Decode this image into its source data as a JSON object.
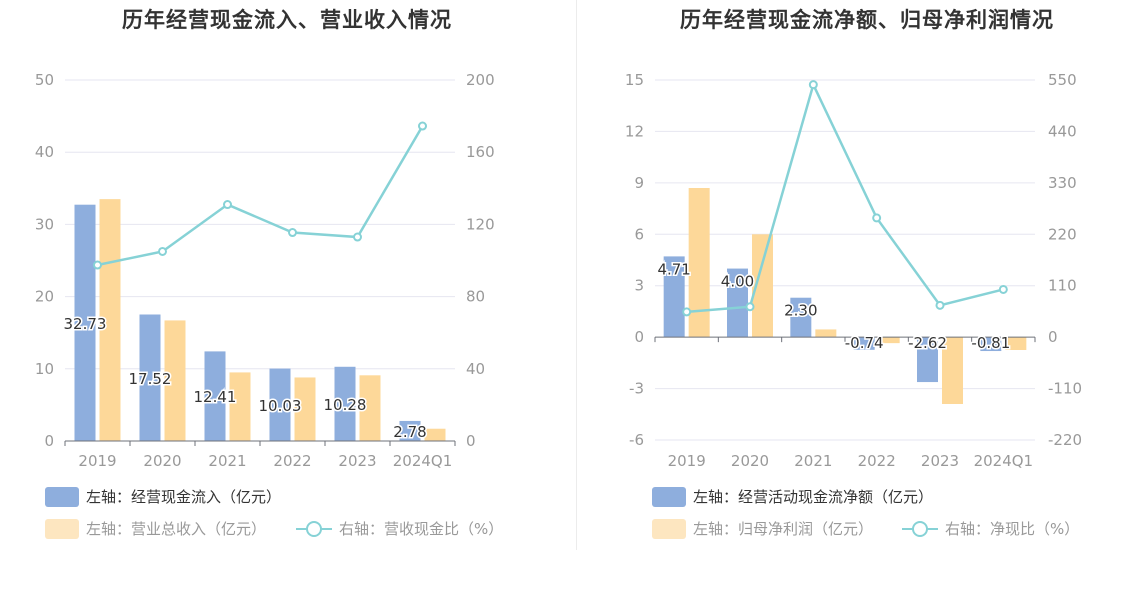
{
  "colors": {
    "blue": "#8eaedd",
    "orange": "#fdd899",
    "line": "#86d2d6",
    "grid": "#e6e6f0",
    "axis_text": "#999999"
  },
  "left_panel": {
    "title": "历年经营现金流入、营业收入情况",
    "legend": {
      "item1": "左轴：经营现金流入（亿元）",
      "item2": "左轴：营业总收入（亿元）",
      "item3": "右轴：营收现金比（%）"
    }
  },
  "right_panel": {
    "title": "历年经营现金流净额、归母净利润情况",
    "legend": {
      "item1": "左轴：经营活动现金流净额（亿元）",
      "item2": "左轴：归母净利润（亿元）",
      "item3": "右轴：净现比（%）"
    }
  },
  "chart_data": [
    {
      "type": "bar",
      "title": "历年经营现金流入、营业收入情况",
      "categories": [
        "2019",
        "2020",
        "2021",
        "2022",
        "2023",
        "2024Q1"
      ],
      "left_axis": {
        "ticks": [
          "0",
          "10",
          "20",
          "30",
          "40",
          "50"
        ],
        "ylim": [
          0,
          50
        ]
      },
      "right_axis": {
        "ticks": [
          "0",
          "40",
          "80",
          "120",
          "160",
          "200"
        ],
        "ylim": [
          0,
          200
        ]
      },
      "series": [
        {
          "name": "左轴：经营现金流入（亿元）",
          "type": "bar",
          "axis": "left",
          "values": [
            32.73,
            17.52,
            12.41,
            10.03,
            10.28,
            2.78
          ]
        },
        {
          "name": "左轴：营业总收入（亿元）",
          "type": "bar",
          "axis": "left",
          "values": [
            33.5,
            16.7,
            9.5,
            8.8,
            9.1,
            1.7
          ]
        },
        {
          "name": "右轴：营收现金比（%）",
          "type": "line",
          "axis": "right",
          "values": [
            97.5,
            105,
            131,
            115.5,
            113,
            174.5
          ]
        }
      ],
      "data_labels": [
        "32.73",
        "17.52",
        "12.41",
        "10.03",
        "10.28",
        "2.78"
      ],
      "grid": true,
      "legend_position": "bottom-left"
    },
    {
      "type": "bar",
      "title": "历年经营现金流净额、归母净利润情况",
      "categories": [
        "2019",
        "2020",
        "2021",
        "2022",
        "2023",
        "2024Q1"
      ],
      "left_axis": {
        "ticks": [
          "-6",
          "-3",
          "0",
          "3",
          "6",
          "9",
          "12",
          "15"
        ],
        "ylim": [
          -6,
          15
        ]
      },
      "right_axis": {
        "ticks": [
          "-220",
          "-110",
          "0",
          "110",
          "220",
          "330",
          "440",
          "550"
        ],
        "ylim": [
          -220,
          550
        ]
      },
      "series": [
        {
          "name": "左轴：经营活动现金流净额（亿元）",
          "type": "bar",
          "axis": "left",
          "values": [
            4.71,
            4.0,
            2.3,
            -0.74,
            -2.62,
            -0.81
          ]
        },
        {
          "name": "左轴：归母净利润（亿元）",
          "type": "bar",
          "axis": "left",
          "values": [
            8.7,
            6.0,
            0.45,
            -0.35,
            -3.9,
            -0.75
          ]
        },
        {
          "name": "右轴：净现比（%）",
          "type": "line",
          "axis": "right",
          "values": [
            54,
            65,
            540,
            255,
            68,
            102
          ]
        }
      ],
      "data_labels": [
        "4.71",
        "4.00",
        "2.30",
        "-0.74",
        "-2.62",
        "-0.81"
      ],
      "grid": true,
      "legend_position": "bottom-left"
    }
  ]
}
